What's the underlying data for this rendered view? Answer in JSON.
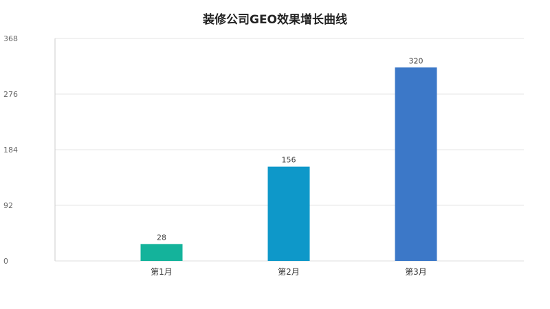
{
  "chart_data": {
    "type": "bar",
    "title": "装修公司GEO效果增长曲线",
    "categories": [
      "第1月",
      "第2月",
      "第3月"
    ],
    "values": [
      28,
      156,
      320
    ],
    "bar_colors": [
      "#14b39b",
      "#0e98c9",
      "#3c78c8"
    ],
    "ylim": [
      0,
      368
    ],
    "yticks": [
      0,
      92,
      184,
      276,
      368
    ],
    "ytick_labels": [
      "0",
      "92",
      "184",
      "276",
      "368"
    ],
    "xlabel": "",
    "ylabel": "",
    "grid": true,
    "legend": "none"
  }
}
